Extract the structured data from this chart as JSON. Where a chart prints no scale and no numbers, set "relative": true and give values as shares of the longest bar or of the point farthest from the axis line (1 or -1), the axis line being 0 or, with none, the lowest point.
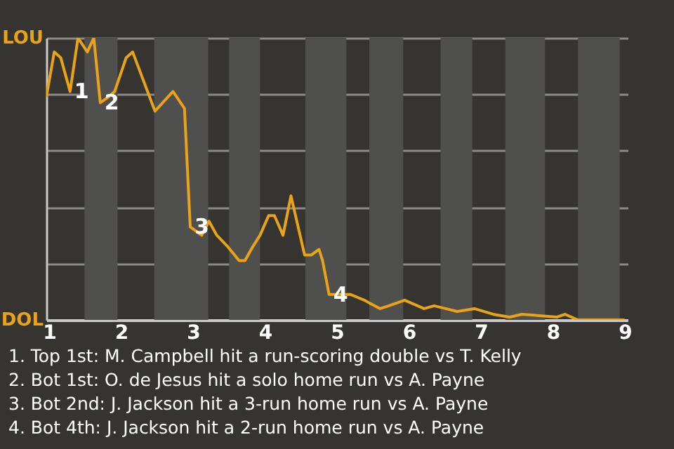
{
  "chart_data": {
    "type": "line",
    "x": [
      0.96,
      1.07,
      1.16,
      1.29,
      1.4,
      1.53,
      1.62,
      1.71,
      1.82,
      1.91,
      2.07,
      2.16,
      2.47,
      2.72,
      2.88,
      2.96,
      3.12,
      3.22,
      3.33,
      3.48,
      3.64,
      3.72,
      3.83,
      3.93,
      4.05,
      4.13,
      4.25,
      4.36,
      4.55,
      4.64,
      4.75,
      4.8,
      4.89,
      5.0,
      5.09,
      5.19,
      5.38,
      5.45,
      5.6,
      5.72,
      5.94,
      6.21,
      6.35,
      6.51,
      6.67,
      6.91,
      7.17,
      7.4,
      7.57,
      8.06,
      8.17,
      8.35,
      9.0
    ],
    "series": [
      {
        "color": "#e8a317",
        "values": [
          0.79,
          0.95,
          0.93,
          0.81,
          1,
          0.95,
          1,
          0.77,
          0.79,
          0.81,
          0.93,
          0.95,
          0.74,
          0.81,
          0.75,
          0.33,
          0.3,
          0.35,
          0.3,
          0.26,
          0.21,
          0.21,
          0.26,
          0.3,
          0.37,
          0.37,
          0.3,
          0.44,
          0.23,
          0.23,
          0.25,
          0.21,
          0.09,
          0.09,
          0.09,
          0.09,
          0.07,
          0.06,
          0.04,
          0.05,
          0.07,
          0.04,
          0.05,
          0.04,
          0.03,
          0.04,
          0.02,
          0.01,
          0.02,
          0.01,
          0.02,
          0,
          0
        ]
      }
    ],
    "relative": true,
    "xlim": [
      0.96,
      9.04
    ],
    "xticks": [
      1,
      2,
      3,
      4,
      5,
      6,
      7,
      8,
      9
    ],
    "grid": "y",
    "bands": [
      {
        "axis": "x",
        "from": 1.49,
        "to": 1.95,
        "color": "#4f4f4d"
      },
      {
        "axis": "x",
        "from": 2.46,
        "to": 3.21,
        "color": "#4f4f4d"
      },
      {
        "axis": "x",
        "from": 3.5,
        "to": 3.93,
        "color": "#4f4f4d"
      },
      {
        "axis": "x",
        "from": 4.56,
        "to": 5.13,
        "color": "#4f4f4d"
      },
      {
        "axis": "x",
        "from": 5.45,
        "to": 5.92,
        "color": "#4f4f4d"
      },
      {
        "axis": "x",
        "from": 6.44,
        "to": 6.88,
        "color": "#4f4f4d"
      },
      {
        "axis": "x",
        "from": 7.34,
        "to": 7.89,
        "color": "#4f4f4d"
      },
      {
        "axis": "x",
        "from": 8.35,
        "to": 8.93,
        "color": "#4f4f4d"
      }
    ],
    "annotations": [
      {
        "text": "1",
        "x": 1.29,
        "y": 0.81
      },
      {
        "text": "2",
        "x": 1.71,
        "y": 0.77
      },
      {
        "text": "3",
        "x": 2.96,
        "y": 0.33
      },
      {
        "text": "4",
        "x": 4.89,
        "y": 0.09
      },
      "LOU",
      "DOL",
      "1. Top 1st: M. Campbell hit a run-scoring double vs T. Kelly",
      "2. Bot 1st: O. de Jesus hit a solo home run vs A. Payne",
      "3. Bot 2nd: J. Jackson hit a 3-run home run vs A. Payne",
      "4. Bot 4th: J. Jackson hit a 2-run home run vs A. Payne"
    ],
    "marker": "none"
  }
}
